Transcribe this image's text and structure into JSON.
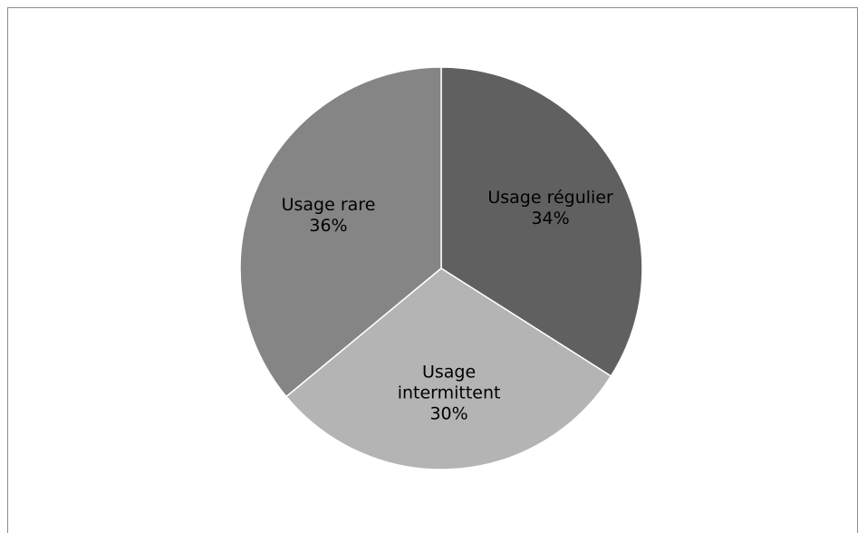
{
  "colors": {
    "background": "#ffffff",
    "frame_border": "#8c8c8c",
    "slice_edge": "#ffffff"
  },
  "chart_data": {
    "type": "pie",
    "title": "",
    "start_angle_deg": 0,
    "direction": "clockwise",
    "slices": [
      {
        "id": "regulier",
        "label_lines": [
          "Usage régulier"
        ],
        "percent_label": "34%",
        "value": 34,
        "color": "#606060"
      },
      {
        "id": "intermittent",
        "label_lines": [
          "Usage",
          "intermittent"
        ],
        "percent_label": "30%",
        "value": 30,
        "color": "#b4b4b4"
      },
      {
        "id": "rare",
        "label_lines": [
          "Usage rare"
        ],
        "percent_label": "36%",
        "value": 36,
        "color": "#858585"
      }
    ],
    "legend": "none"
  }
}
